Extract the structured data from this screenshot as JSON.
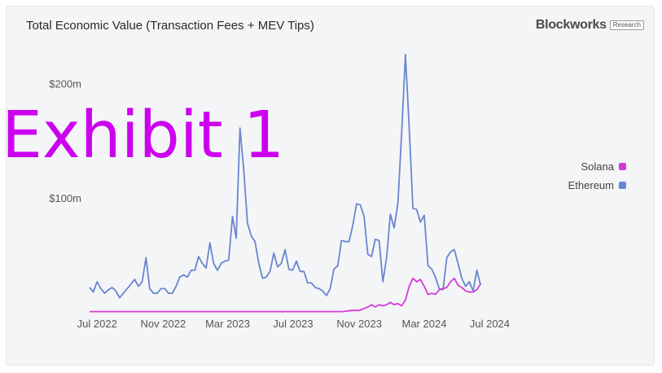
{
  "header": {
    "title": "Total Economic Value (Transaction Fees + MEV Tips)",
    "brand": "Blockworks",
    "brand_tag": "Research"
  },
  "watermark": "Exhibit 1",
  "colors": {
    "solana": "#d63ad6",
    "ethereum": "#6a85cf"
  },
  "chart_data": {
    "type": "line",
    "title": "Total Economic Value (Transaction Fees + MEV Tips)",
    "xlabel": "",
    "ylabel": "",
    "x_ticks": [
      "Jul 2022",
      "Nov 2022",
      "Mar 2023",
      "Jul 2023",
      "Nov 2023",
      "Mar 2024",
      "Jul 2024"
    ],
    "y_ticks": [
      {
        "value": 100,
        "label": "$100m"
      },
      {
        "value": 200,
        "label": "$200m"
      }
    ],
    "ylim": [
      0,
      230
    ],
    "x_range": [
      "2022-07-01",
      "2024-07-31"
    ],
    "legend_position": "right",
    "grid": false,
    "series": [
      {
        "name": "Ethereum",
        "color": "#6a85cf",
        "points": [
          [
            "2022-07-01",
            22
          ],
          [
            "2022-07-08",
            18
          ],
          [
            "2022-07-15",
            27
          ],
          [
            "2022-07-22",
            21
          ],
          [
            "2022-07-29",
            17
          ],
          [
            "2022-08-05",
            20
          ],
          [
            "2022-08-12",
            22
          ],
          [
            "2022-08-19",
            19
          ],
          [
            "2022-08-26",
            13
          ],
          [
            "2022-09-02",
            17
          ],
          [
            "2022-09-09",
            21
          ],
          [
            "2022-09-16",
            25
          ],
          [
            "2022-09-23",
            29
          ],
          [
            "2022-09-30",
            23
          ],
          [
            "2022-10-07",
            27
          ],
          [
            "2022-10-14",
            48
          ],
          [
            "2022-10-21",
            21
          ],
          [
            "2022-10-28",
            17
          ],
          [
            "2022-11-04",
            17
          ],
          [
            "2022-11-11",
            21
          ],
          [
            "2022-11-18",
            21
          ],
          [
            "2022-11-25",
            17
          ],
          [
            "2022-12-02",
            17
          ],
          [
            "2022-12-09",
            23
          ],
          [
            "2022-12-16",
            31
          ],
          [
            "2022-12-23",
            33
          ],
          [
            "2022-12-30",
            31
          ],
          [
            "2023-01-06",
            37
          ],
          [
            "2023-01-13",
            37
          ],
          [
            "2023-01-20",
            49
          ],
          [
            "2023-01-27",
            43
          ],
          [
            "2023-02-03",
            39
          ],
          [
            "2023-02-10",
            61
          ],
          [
            "2023-02-17",
            43
          ],
          [
            "2023-02-24",
            37
          ],
          [
            "2023-03-03",
            43
          ],
          [
            "2023-03-10",
            45
          ],
          [
            "2023-03-17",
            46
          ],
          [
            "2023-03-24",
            84
          ],
          [
            "2023-03-31",
            65
          ],
          [
            "2023-04-07",
            161
          ],
          [
            "2023-04-14",
            125
          ],
          [
            "2023-04-21",
            78
          ],
          [
            "2023-04-28",
            67
          ],
          [
            "2023-05-05",
            62
          ],
          [
            "2023-05-12",
            43
          ],
          [
            "2023-05-19",
            30
          ],
          [
            "2023-05-26",
            31
          ],
          [
            "2023-06-02",
            36
          ],
          [
            "2023-06-09",
            52
          ],
          [
            "2023-06-16",
            40
          ],
          [
            "2023-06-23",
            43
          ],
          [
            "2023-06-30",
            55
          ],
          [
            "2023-07-07",
            38
          ],
          [
            "2023-07-14",
            37
          ],
          [
            "2023-07-21",
            45
          ],
          [
            "2023-07-28",
            36
          ],
          [
            "2023-08-04",
            36
          ],
          [
            "2023-08-11",
            26
          ],
          [
            "2023-08-18",
            26
          ],
          [
            "2023-08-25",
            22
          ],
          [
            "2023-09-01",
            21
          ],
          [
            "2023-09-08",
            19
          ],
          [
            "2023-09-15",
            15
          ],
          [
            "2023-09-22",
            21
          ],
          [
            "2023-09-29",
            38
          ],
          [
            "2023-10-06",
            41
          ],
          [
            "2023-10-13",
            63
          ],
          [
            "2023-10-20",
            62
          ],
          [
            "2023-10-27",
            62
          ],
          [
            "2023-11-03",
            76
          ],
          [
            "2023-11-10",
            95
          ],
          [
            "2023-11-17",
            94
          ],
          [
            "2023-11-24",
            84
          ],
          [
            "2023-12-01",
            51
          ],
          [
            "2023-12-08",
            49
          ],
          [
            "2023-12-15",
            64
          ],
          [
            "2023-12-22",
            63
          ],
          [
            "2023-12-29",
            27
          ],
          [
            "2024-01-05",
            48
          ],
          [
            "2024-01-12",
            86
          ],
          [
            "2024-01-19",
            74
          ],
          [
            "2024-01-26",
            95
          ],
          [
            "2024-02-02",
            157
          ],
          [
            "2024-02-09",
            225
          ],
          [
            "2024-02-16",
            162
          ],
          [
            "2024-02-23",
            91
          ],
          [
            "2024-03-01",
            90
          ],
          [
            "2024-03-08",
            79
          ],
          [
            "2024-03-15",
            85
          ],
          [
            "2024-03-22",
            41
          ],
          [
            "2024-03-29",
            38
          ],
          [
            "2024-04-05",
            31
          ],
          [
            "2024-04-12",
            21
          ],
          [
            "2024-04-19",
            20
          ],
          [
            "2024-04-26",
            48
          ],
          [
            "2024-05-03",
            53
          ],
          [
            "2024-05-10",
            55
          ],
          [
            "2024-05-17",
            43
          ],
          [
            "2024-05-24",
            30
          ],
          [
            "2024-05-31",
            23
          ],
          [
            "2024-06-07",
            27
          ],
          [
            "2024-06-14",
            19
          ],
          [
            "2024-06-21",
            37
          ],
          [
            "2024-06-28",
            24
          ]
        ]
      },
      {
        "name": "Solana",
        "color": "#d63ad6",
        "points": [
          [
            "2022-07-01",
            1
          ],
          [
            "2022-09-01",
            1
          ],
          [
            "2022-11-01",
            1
          ],
          [
            "2023-01-01",
            1
          ],
          [
            "2023-03-01",
            1
          ],
          [
            "2023-05-01",
            1
          ],
          [
            "2023-07-01",
            1
          ],
          [
            "2023-09-01",
            1
          ],
          [
            "2023-10-15",
            1
          ],
          [
            "2023-11-01",
            2
          ],
          [
            "2023-11-15",
            2
          ],
          [
            "2023-12-01",
            5
          ],
          [
            "2023-12-08",
            7
          ],
          [
            "2023-12-15",
            5
          ],
          [
            "2023-12-22",
            7
          ],
          [
            "2023-12-29",
            6
          ],
          [
            "2024-01-05",
            7
          ],
          [
            "2024-01-12",
            9
          ],
          [
            "2024-01-19",
            7
          ],
          [
            "2024-01-26",
            8
          ],
          [
            "2024-02-02",
            6
          ],
          [
            "2024-02-09",
            11
          ],
          [
            "2024-02-16",
            23
          ],
          [
            "2024-02-23",
            30
          ],
          [
            "2024-03-01",
            27
          ],
          [
            "2024-03-08",
            29
          ],
          [
            "2024-03-15",
            23
          ],
          [
            "2024-03-22",
            16
          ],
          [
            "2024-03-29",
            17
          ],
          [
            "2024-04-05",
            16
          ],
          [
            "2024-04-12",
            20
          ],
          [
            "2024-04-19",
            21
          ],
          [
            "2024-04-26",
            22
          ],
          [
            "2024-05-03",
            27
          ],
          [
            "2024-05-10",
            30
          ],
          [
            "2024-05-17",
            24
          ],
          [
            "2024-05-24",
            22
          ],
          [
            "2024-05-31",
            19
          ],
          [
            "2024-06-07",
            18
          ],
          [
            "2024-06-14",
            18
          ],
          [
            "2024-06-21",
            20
          ],
          [
            "2024-06-28",
            25
          ]
        ]
      }
    ]
  }
}
